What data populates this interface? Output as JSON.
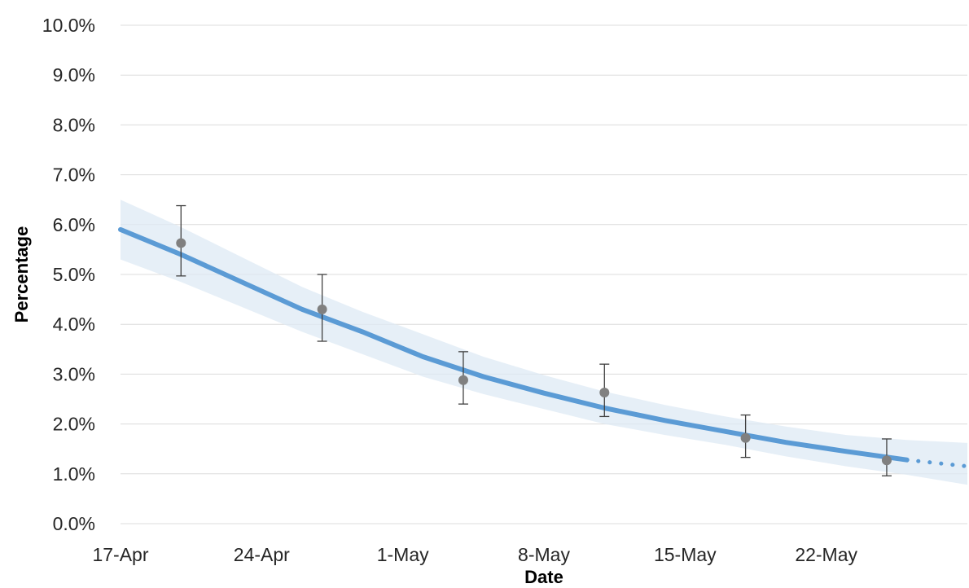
{
  "chart_data": {
    "type": "line",
    "xlabel": "Date",
    "ylabel": "Percentage",
    "x_ticks": [
      "17-Apr",
      "24-Apr",
      "1-May",
      "8-May",
      "15-May",
      "22-May"
    ],
    "y_ticks": [
      "0.0%",
      "1.0%",
      "2.0%",
      "3.0%",
      "4.0%",
      "5.0%",
      "6.0%",
      "7.0%",
      "8.0%",
      "9.0%",
      "10.0%"
    ],
    "ylim": [
      0,
      10
    ],
    "xlim": [
      "2020-04-17",
      "2020-05-29"
    ],
    "grid": "horizontal",
    "colors": {
      "trend": "#5b9bd5",
      "band": "#dde9f4",
      "points": "#808080",
      "error_bars": "#404040"
    },
    "trend": [
      {
        "x": "2020-04-17",
        "y": 5.9
      },
      {
        "x": "2020-04-20",
        "y": 5.4
      },
      {
        "x": "2020-04-23",
        "y": 4.85
      },
      {
        "x": "2020-04-26",
        "y": 4.3
      },
      {
        "x": "2020-04-29",
        "y": 3.85
      },
      {
        "x": "2020-05-02",
        "y": 3.35
      },
      {
        "x": "2020-05-05",
        "y": 2.95
      },
      {
        "x": "2020-05-08",
        "y": 2.62
      },
      {
        "x": "2020-05-11",
        "y": 2.32
      },
      {
        "x": "2020-05-14",
        "y": 2.07
      },
      {
        "x": "2020-05-17",
        "y": 1.85
      },
      {
        "x": "2020-05-20",
        "y": 1.63
      },
      {
        "x": "2020-05-23",
        "y": 1.45
      },
      {
        "x": "2020-05-26",
        "y": 1.28
      }
    ],
    "trend_projection": [
      {
        "x": "2020-05-26",
        "y": 1.28
      },
      {
        "x": "2020-05-29",
        "y": 1.15
      }
    ],
    "band": [
      {
        "x": "2020-04-17",
        "low": 5.3,
        "high": 6.5
      },
      {
        "x": "2020-04-20",
        "low": 4.85,
        "high": 5.95
      },
      {
        "x": "2020-04-23",
        "low": 4.35,
        "high": 5.35
      },
      {
        "x": "2020-04-26",
        "low": 3.85,
        "high": 4.75
      },
      {
        "x": "2020-04-29",
        "low": 3.4,
        "high": 4.25
      },
      {
        "x": "2020-05-02",
        "low": 2.95,
        "high": 3.8
      },
      {
        "x": "2020-05-05",
        "low": 2.6,
        "high": 3.35
      },
      {
        "x": "2020-05-08",
        "low": 2.3,
        "high": 2.98
      },
      {
        "x": "2020-05-11",
        "low": 2.0,
        "high": 2.65
      },
      {
        "x": "2020-05-14",
        "low": 1.78,
        "high": 2.38
      },
      {
        "x": "2020-05-17",
        "low": 1.58,
        "high": 2.15
      },
      {
        "x": "2020-05-20",
        "low": 1.35,
        "high": 1.95
      },
      {
        "x": "2020-05-23",
        "low": 1.15,
        "high": 1.78
      },
      {
        "x": "2020-05-26",
        "low": 0.98,
        "high": 1.68
      },
      {
        "x": "2020-05-29",
        "low": 0.78,
        "high": 1.62
      }
    ],
    "points": [
      {
        "x": "2020-04-20",
        "y": 5.63,
        "low": 4.97,
        "high": 6.38
      },
      {
        "x": "2020-04-27",
        "y": 4.3,
        "low": 3.66,
        "high": 5.0
      },
      {
        "x": "2020-05-04",
        "y": 2.88,
        "low": 2.4,
        "high": 3.45
      },
      {
        "x": "2020-05-11",
        "y": 2.63,
        "low": 2.15,
        "high": 3.2
      },
      {
        "x": "2020-05-18",
        "y": 1.72,
        "low": 1.33,
        "high": 2.18
      },
      {
        "x": "2020-05-25",
        "y": 1.27,
        "low": 0.96,
        "high": 1.7
      }
    ]
  }
}
